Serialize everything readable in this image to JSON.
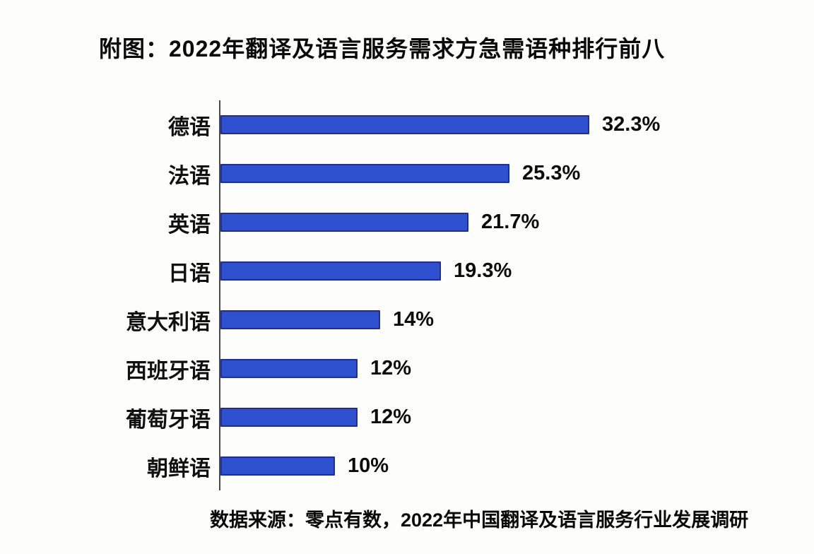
{
  "page": {
    "title": "附图：2022年翻译及语言服务需求方急需语种排行前八",
    "source": "数据来源：零点有数，2022年中国翻译及语言服务行业发展调研"
  },
  "chart_data": {
    "type": "bar",
    "orientation": "horizontal",
    "title": "附图：2022年翻译及语言服务需求方急需语种排行前八",
    "categories": [
      "德语",
      "法语",
      "英语",
      "日语",
      "意大利语",
      "西班牙语",
      "葡萄牙语",
      "朝鲜语"
    ],
    "values": [
      32.3,
      25.3,
      21.7,
      19.3,
      14,
      12,
      12,
      10
    ],
    "value_labels": [
      "32.3%",
      "25.3%",
      "21.7%",
      "19.3%",
      "14%",
      "12%",
      "12%",
      "10%"
    ],
    "xlabel": "",
    "ylabel": "",
    "xlim": [
      0,
      35
    ],
    "grid": false,
    "legend": false,
    "data_labels_position": "end-of-bar",
    "source": "数据来源：零点有数，2022年中国翻译及语言服务行业发展调研",
    "colors": {
      "bar_fill": "#2f50cf",
      "bar_border": "#1c2e9a",
      "axis_line": "#4a4a4a",
      "text": "#0a0a0a",
      "background": "#fdfdfc"
    }
  }
}
